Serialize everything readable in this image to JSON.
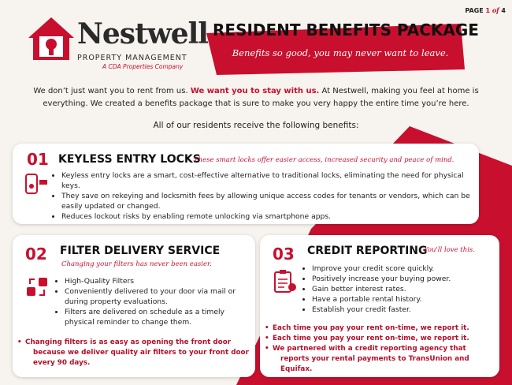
{
  "header": {
    "page": {
      "label": "PAGE",
      "number": "1",
      "of": "of",
      "total": "4"
    },
    "logo": {
      "name": "Nestwell",
      "subtitle": "PROPERTY MANAGEMENT",
      "tagline": "A CDA Properties Company"
    },
    "title": "RESIDENT BENEFITS PACKAGE",
    "slogan": "Benefits so good, you may never want to leave."
  },
  "intro": {
    "parts": [
      "We don’t just want you to rent from us. ",
      "We want you to stay with us.",
      " At Nestwell, making you feel at home is everything. We created a benefits package that is sure to make you very happy the entire time you’re here."
    ],
    "lead": "All of our residents receive the following benefits:"
  },
  "sections": [
    {
      "number": "01",
      "title": "KEYLESS ENTRY LOCKS",
      "subtitle": "These smart locks offer easier access, increased security and peace of mind.",
      "bullets": [
        "Keyless entry locks are a smart, cost-effective alternative to traditional locks, eliminating the need for physical keys.",
        "They save on rekeying and locksmith fees by allowing unique access codes for tenants or vendors, which can be easily updated or changed.",
        "Reduces lockout risks by enabling remote unlocking via smartphone apps."
      ]
    },
    {
      "number": "02",
      "title": "FILTER DELIVERY SERVICE",
      "subtitle": "Changing your filters has never been easier.",
      "bullets": [
        "High-Quality Filters",
        "Conveniently delivered to your door via mail or during property evaluations.",
        "Filters are delivered on schedule as a timely physical reminder to change them."
      ],
      "notes": [
        "Changing filters is as easy as opening the front door because we deliver quality air filters to your front door every 90 days."
      ]
    },
    {
      "number": "03",
      "title": "CREDIT REPORTING",
      "subtitle": "You'll love this.",
      "bullets": [
        "Improve your credit score quickly.",
        "Positively increase your buying power.",
        "Gain better interest rates.",
        "Have a portable rental history.",
        "Establish your credit faster."
      ],
      "notes": [
        "Each time you pay your rent on-time, we report it.",
        "Each time you pay your rent on-time, we report it.",
        "We partnered with a credit reporting agency that reports your rental payments to TransUnion and Equifax."
      ]
    }
  ]
}
